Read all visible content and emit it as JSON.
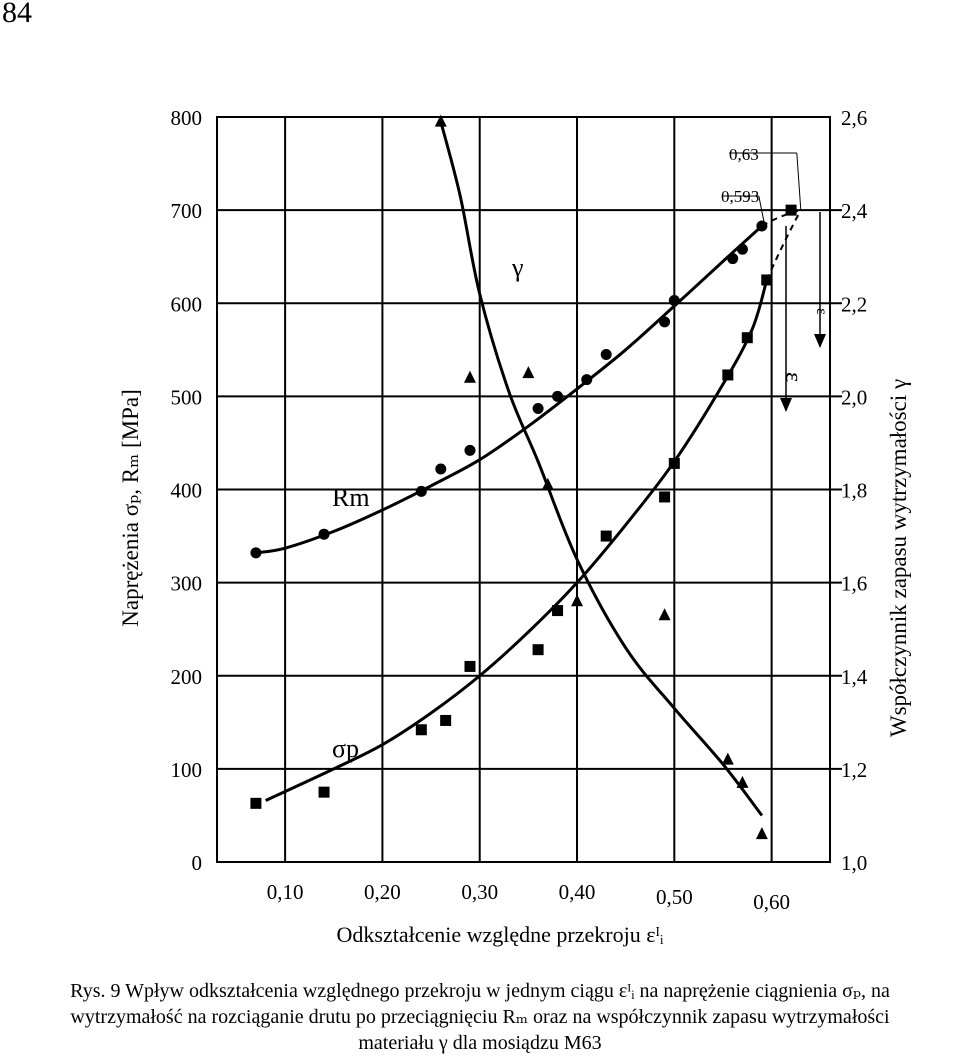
{
  "page_number": "84",
  "caption": {
    "line1": "Rys. 9 Wpływ odkształcenia względnego przekroju w jednym ciągu εᴵᵢ na naprężenie ciągnienia σₚ, na",
    "line2": "wytrzymałość na rozciąganie drutu po przeciągnięciu Rₘ oraz na współczynnik zapasu wytrzymałości",
    "line3": "materiału γ dla mosiądzu M63"
  },
  "chart_data": {
    "type": "scatter",
    "xlabel": "Odkształcenie względne przekroju εᴵᵢ",
    "ylabel_left": "Naprężenia σₚ, Rₘ [MPa]",
    "ylabel_right": "Współczynnik zapasu wytrzymałości γ",
    "x_ticks": [
      "0,10",
      "0,20",
      "0,30",
      "0,40",
      "0,50",
      "0,60"
    ],
    "x_tick_values": [
      0.1,
      0.2,
      0.3,
      0.4,
      0.5,
      0.6
    ],
    "xlim": [
      0.03,
      0.66
    ],
    "y_left_ticks": [
      "0",
      "100",
      "200",
      "300",
      "400",
      "500",
      "600",
      "700",
      "800"
    ],
    "ylim_left": [
      0,
      800
    ],
    "y_right_ticks": [
      "1,0",
      "1,2",
      "1,4",
      "1,6",
      "1,8",
      "2,0",
      "2,2",
      "2,4",
      "2,6"
    ],
    "ylim_right": [
      1.0,
      2.6
    ],
    "grid": true,
    "annotations": {
      "gamma": "γ",
      "rm": "Rm",
      "sigma": "σp",
      "eps_1": "ε",
      "eps_2": "ε",
      "marker_063": "0,63",
      "marker_0593": "0,593"
    },
    "series": [
      {
        "name": "Rm",
        "marker": "circle",
        "axis": "left",
        "x": [
          0.07,
          0.14,
          0.24,
          0.26,
          0.29,
          0.36,
          0.38,
          0.41,
          0.43,
          0.49,
          0.5,
          0.56,
          0.57,
          0.59
        ],
        "y": [
          332,
          352,
          398,
          422,
          442,
          487,
          500,
          518,
          545,
          580,
          603,
          648,
          658,
          683
        ],
        "fit_x": [
          0.07,
          0.1,
          0.15,
          0.2,
          0.25,
          0.3,
          0.35,
          0.4,
          0.45,
          0.5,
          0.55,
          0.59
        ],
        "fit_y": [
          332,
          337,
          355,
          378,
          404,
          432,
          468,
          508,
          550,
          597,
          645,
          683
        ]
      },
      {
        "name": "σp",
        "marker": "square",
        "axis": "left",
        "x": [
          0.07,
          0.14,
          0.24,
          0.265,
          0.29,
          0.36,
          0.38,
          0.43,
          0.49,
          0.5,
          0.555,
          0.575,
          0.595,
          0.62
        ],
        "y": [
          63,
          75,
          142,
          152,
          210,
          228,
          270,
          350,
          392,
          428,
          523,
          563,
          625,
          700
        ],
        "fit_x": [
          0.08,
          0.15,
          0.2,
          0.25,
          0.3,
          0.35,
          0.4,
          0.45,
          0.5,
          0.55,
          0.58,
          0.595
        ],
        "fit_y": [
          66,
          100,
          126,
          160,
          200,
          247,
          300,
          362,
          430,
          513,
          572,
          625
        ]
      },
      {
        "name": "γ",
        "marker": "triangle",
        "axis": "right",
        "x": [
          0.26,
          0.29,
          0.35,
          0.37,
          0.4,
          0.49,
          0.555,
          0.57,
          0.59
        ],
        "y": [
          2.59,
          2.04,
          2.05,
          1.81,
          1.56,
          1.53,
          1.22,
          1.17,
          1.06
        ],
        "fit_x": [
          0.26,
          0.28,
          0.3,
          0.33,
          0.36,
          0.4,
          0.45,
          0.5,
          0.55,
          0.59
        ],
        "fit_y": [
          2.59,
          2.43,
          2.22,
          2.01,
          1.86,
          1.65,
          1.46,
          1.33,
          1.21,
          1.1
        ]
      }
    ]
  }
}
